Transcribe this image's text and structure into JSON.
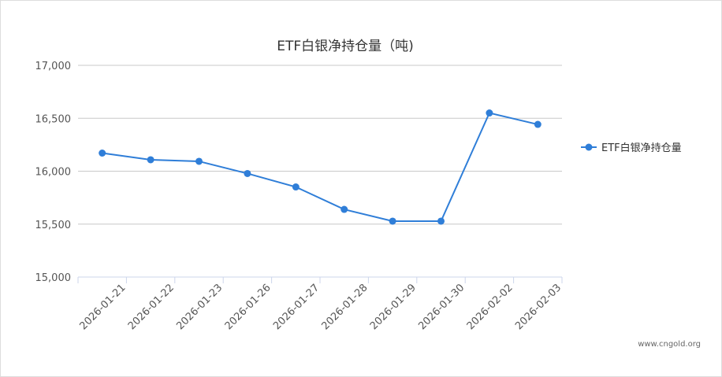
{
  "chart_data": {
    "type": "line",
    "title": "ETF白银净持仓量（吨)",
    "categories": [
      "2026-01-21",
      "2026-01-22",
      "2026-01-23",
      "2026-01-26",
      "2026-01-27",
      "2026-01-28",
      "2026-01-29",
      "2026-01-30",
      "2026-02-02",
      "2026-02-03"
    ],
    "series": [
      {
        "name": "ETF白银净持仓量",
        "values": [
          16171,
          16108,
          16093,
          15978,
          15851,
          15639,
          15528,
          15528,
          16550,
          16442
        ],
        "color": "#2f7ed8"
      }
    ],
    "ylim": [
      15000,
      17000
    ],
    "yticks": [
      15000,
      15500,
      16000,
      16500,
      17000
    ],
    "ytick_labels": [
      "15,000",
      "15,500",
      "16,000",
      "16,500",
      "17,000"
    ],
    "grid": true,
    "legend_position": "right"
  },
  "watermark": "www.cngold.org"
}
